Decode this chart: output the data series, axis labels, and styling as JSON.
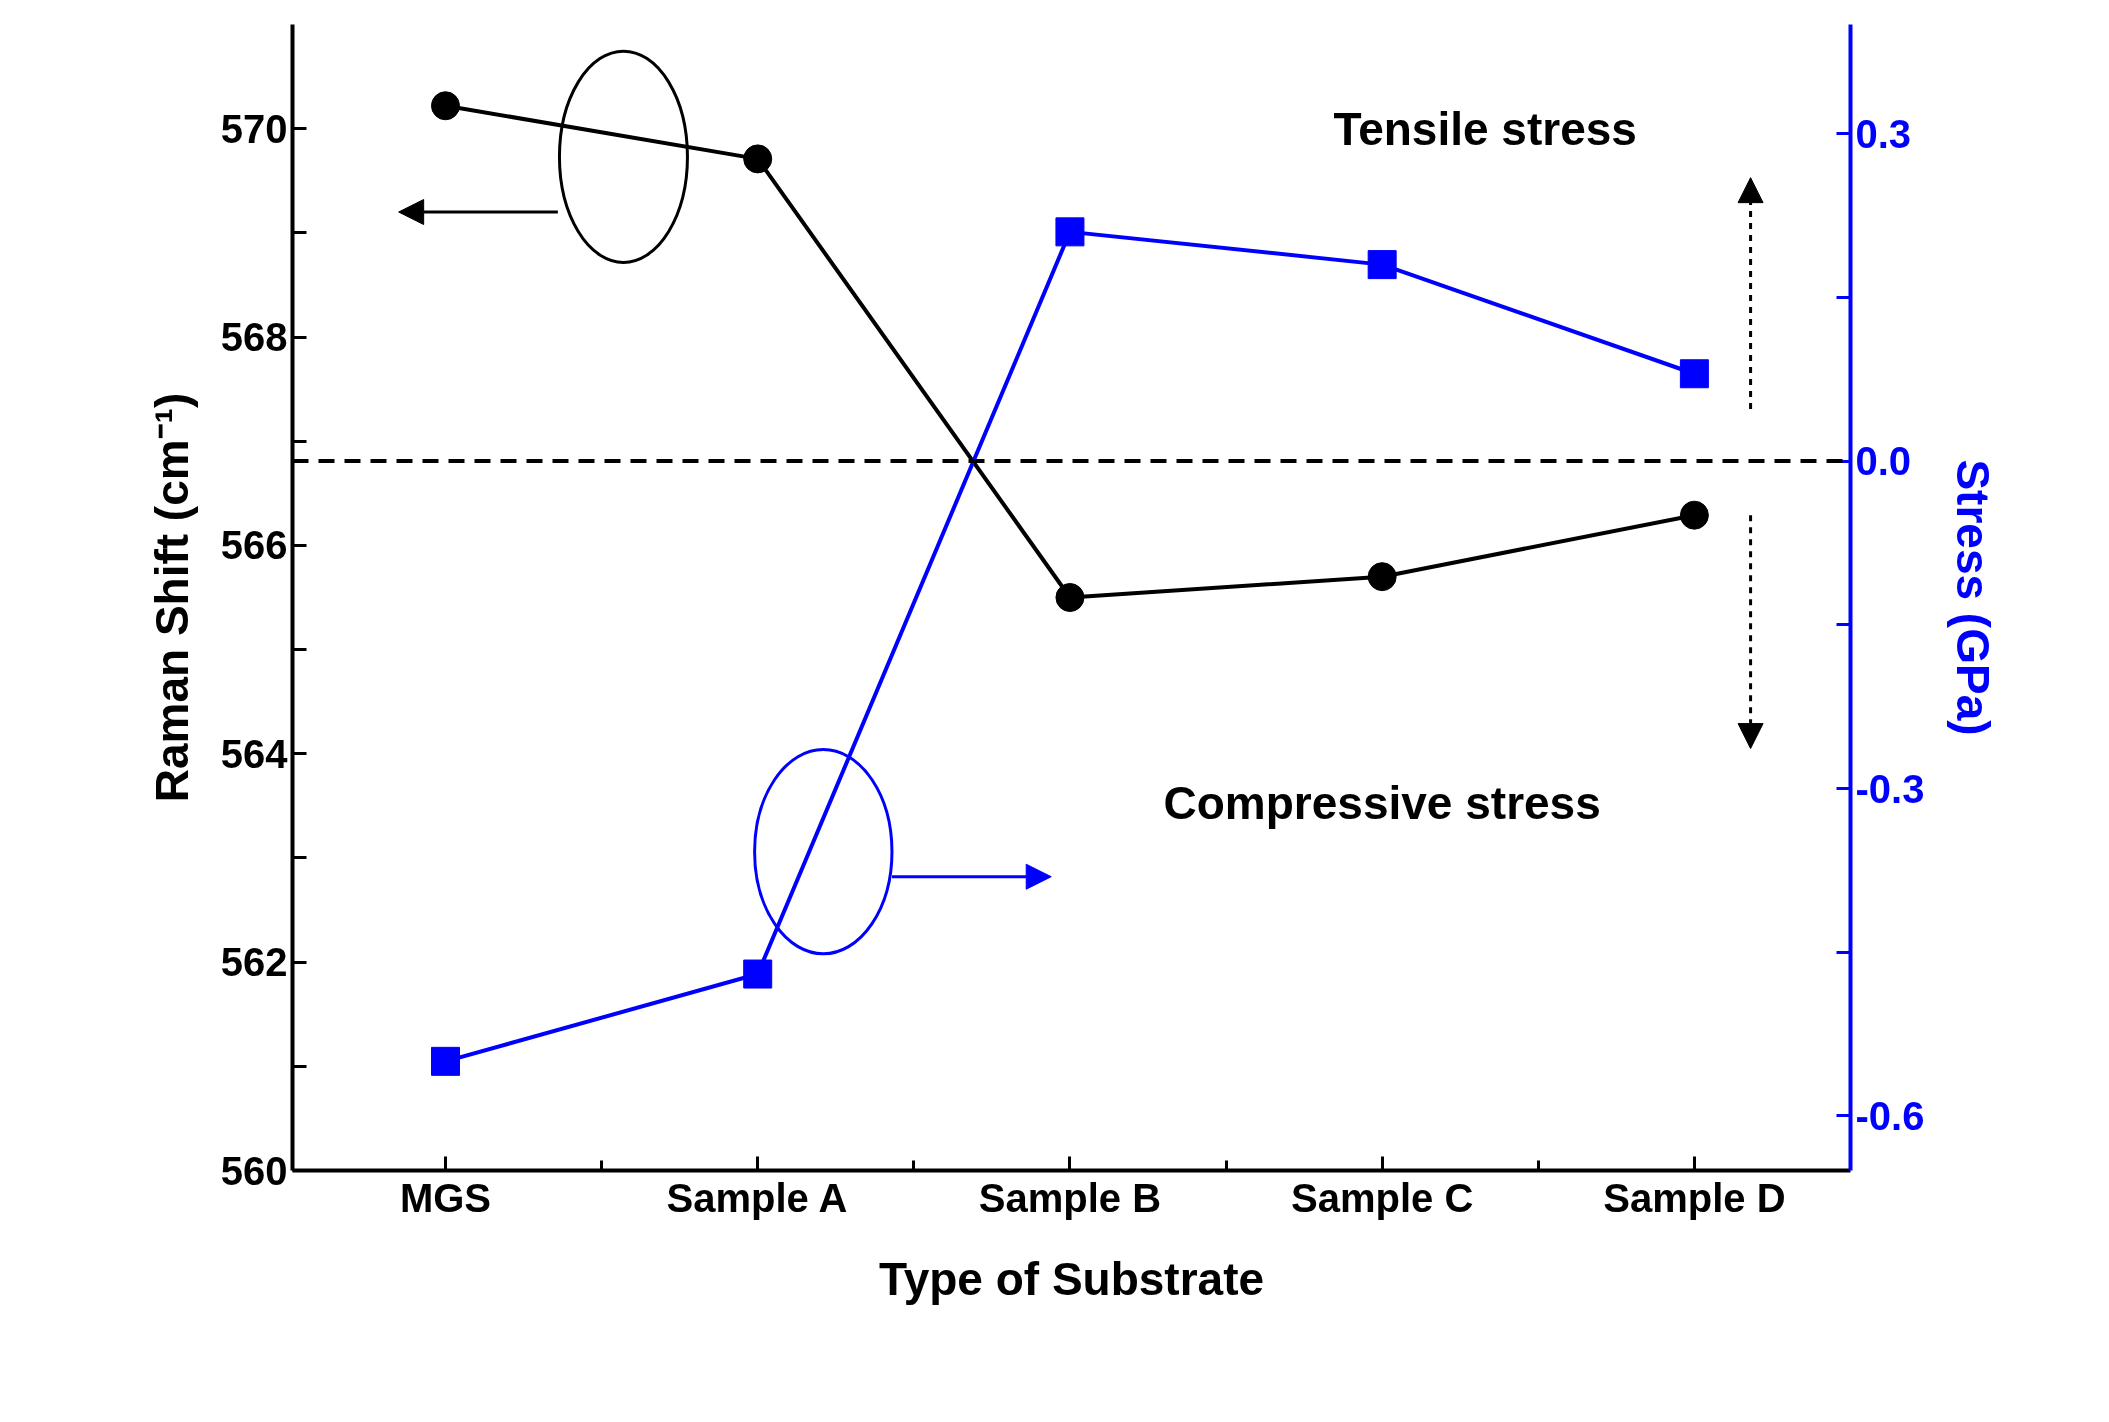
{
  "chart_data": {
    "type": "line",
    "xlabel": "Type of Substrate",
    "ylabel": "Raman Shift (cm⁻¹)",
    "y2label": "Stress (GPa)",
    "categories": [
      "MGS",
      "Sample A",
      "Sample B",
      "Sample C",
      "Sample D"
    ],
    "series": [
      {
        "color": "#000000",
        "marker": "circle",
        "values": [
          570.22,
          569.71,
          565.5,
          565.7,
          566.29
        ]
      },
      {
        "color": "#0000ff",
        "marker": "square",
        "axis": "y2",
        "values": [
          -0.55,
          -0.47,
          0.21,
          0.18,
          0.08
        ]
      }
    ],
    "ylim": [
      560,
      571
    ],
    "yticks": [
      560,
      {
        "value": 561,
        "label": null
      },
      562,
      {
        "value": 563,
        "label": null
      },
      564,
      {
        "value": 565,
        "label": null
      },
      566,
      {
        "value": 567,
        "label": null
      },
      568,
      {
        "value": 569,
        "label": null
      },
      570
    ],
    "y2lim": [
      -0.65,
      0.4
    ],
    "y2ticks": [
      -0.6,
      {
        "value": -0.45,
        "label": null
      },
      -0.3,
      {
        "value": -0.15,
        "label": null
      },
      {
        "value": 0,
        "label": "0.0"
      },
      {
        "value": 0.15,
        "label": null
      },
      0.3
    ],
    "ref_lines": [
      {
        "axis": "y2",
        "value": 0,
        "color": "#000000",
        "line_style": "dashed"
      }
    ],
    "annotations": [
      "Tensile stress",
      "Compressive stress"
    ],
    "grid": false,
    "line_style": "solid"
  }
}
